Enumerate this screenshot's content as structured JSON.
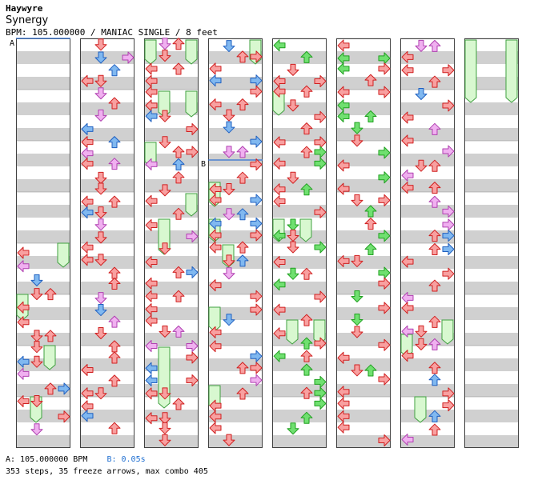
{
  "header": {
    "artist": "Haywyre",
    "title": "Synergy",
    "meta": "BPM: 105.000000 / MANIAC SINGLE / 8 feet"
  },
  "markers": {
    "a": "A",
    "b": "B"
  },
  "footer": {
    "bpm_a": "A: 105.000000 BPM",
    "stop_b": "B: 0.05s",
    "stats": "353 steps, 35 freeze arrows, max combo 405"
  },
  "colors": {
    "quarter": "#f8a0a0",
    "quarter_stroke": "#d02020",
    "eighth": "#80b8f0",
    "eighth_stroke": "#2060c0",
    "sixteenth": "#f0b0f0",
    "sixteenth_stroke": "#b040b0",
    "green": "#70e070",
    "green_stroke": "#20a020",
    "freeze": "#d8f8d0",
    "freeze_stroke": "#40a040",
    "band_gray": "#d0d0d0",
    "lane_border": "#404040",
    "stop_line": "#3070d0"
  }
}
